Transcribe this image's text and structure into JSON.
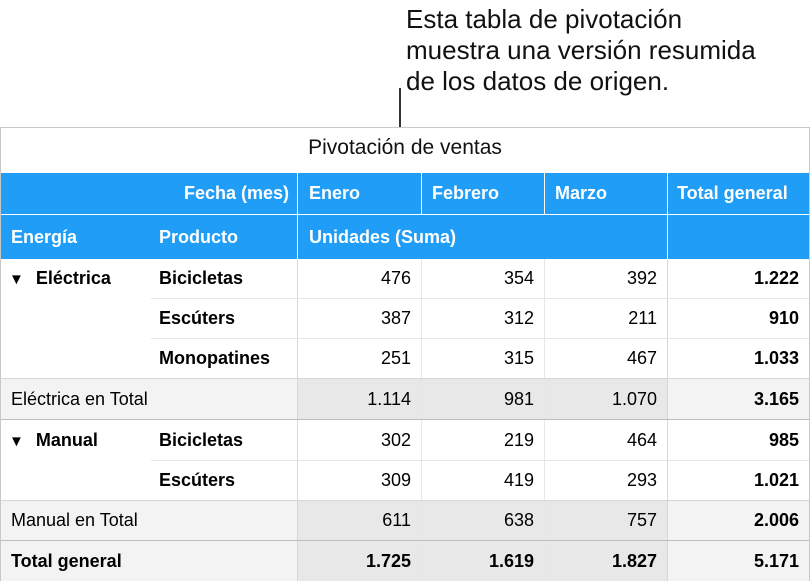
{
  "callout": {
    "line1": "Esta tabla de pivotación",
    "line2": "muestra una versión resumida",
    "line3": "de los datos de origen."
  },
  "table": {
    "title": "Pivotación de ventas",
    "header1": {
      "field": "Fecha (mes)",
      "columns": [
        "Enero",
        "Febrero",
        "Marzo"
      ],
      "total": "Total general"
    },
    "header2": {
      "col1": "Energía",
      "col2": "Producto",
      "values": "Unidades (Suma)"
    },
    "groups": [
      {
        "name": "Eléctrica",
        "toggle": "▼",
        "rows": [
          {
            "product": "Bicicletas",
            "values": [
              "476",
              "354",
              "392"
            ],
            "total": "1.222"
          },
          {
            "product": "Escúters",
            "values": [
              "387",
              "312",
              "211"
            ],
            "total": "910"
          },
          {
            "product": "Monopatines",
            "values": [
              "251",
              "315",
              "467"
            ],
            "total": "1.033"
          }
        ],
        "subtotal": {
          "label": "Eléctrica en Total",
          "values": [
            "1.114",
            "981",
            "1.070"
          ],
          "total": "3.165"
        }
      },
      {
        "name": "Manual",
        "toggle": "▼",
        "rows": [
          {
            "product": "Bicicletas",
            "values": [
              "302",
              "219",
              "464"
            ],
            "total": "985"
          },
          {
            "product": "Escúters",
            "values": [
              "309",
              "419",
              "293"
            ],
            "total": "1.021"
          }
        ],
        "subtotal": {
          "label": "Manual en Total",
          "values": [
            "611",
            "638",
            "757"
          ],
          "total": "2.006"
        }
      }
    ],
    "grand_total": {
      "label": "Total general",
      "values": [
        "1.725",
        "1.619",
        "1.827"
      ],
      "total": "5.171"
    }
  },
  "colors": {
    "header_band": "#1f9df7",
    "subtotal_bg": "#f3f3f3"
  }
}
